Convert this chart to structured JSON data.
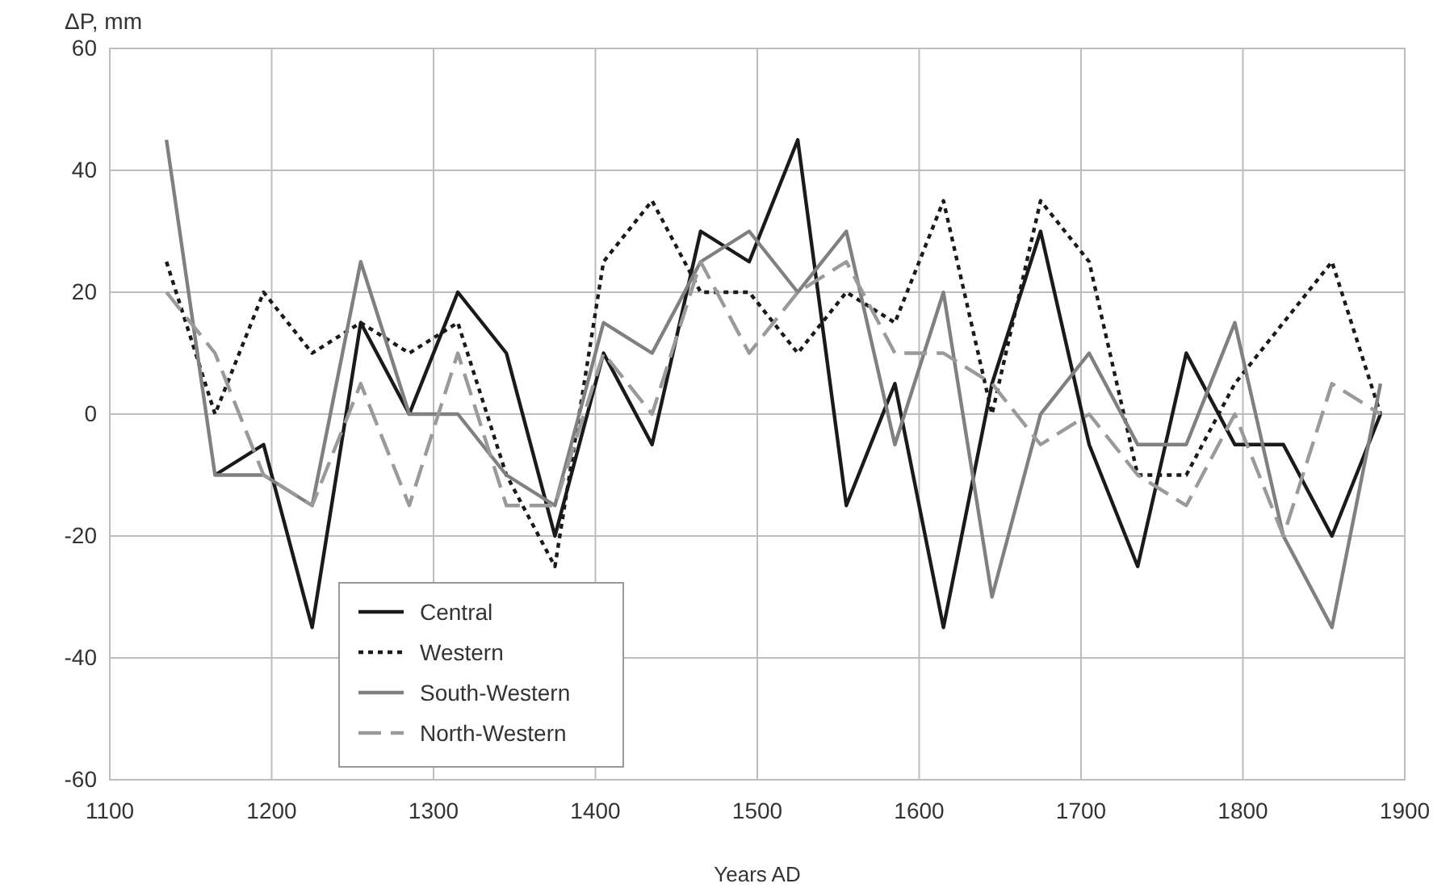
{
  "chart_data": {
    "type": "line",
    "ylabel": "ΔP, mm",
    "xlabel": "Years AD",
    "x": [
      1135,
      1165,
      1195,
      1225,
      1255,
      1285,
      1315,
      1345,
      1375,
      1405,
      1435,
      1465,
      1495,
      1525,
      1555,
      1585,
      1615,
      1645,
      1675,
      1705,
      1735,
      1765,
      1795,
      1825,
      1855,
      1885
    ],
    "xlim": [
      1100,
      1900
    ],
    "xticks": [
      1100,
      1200,
      1300,
      1400,
      1500,
      1600,
      1700,
      1800,
      1900
    ],
    "ylim": [
      -60,
      60
    ],
    "yticks": [
      -60,
      -40,
      -20,
      0,
      20,
      40,
      60
    ],
    "grid": true,
    "legend": "bottom left",
    "series": [
      {
        "name": "Central",
        "color": "#1a1a1a",
        "line_style": "solid",
        "values": [
          null,
          -10,
          -5,
          -35,
          15,
          0,
          20,
          10,
          -20,
          10,
          -5,
          30,
          25,
          45,
          -15,
          5,
          -35,
          5,
          30,
          -5,
          -25,
          10,
          -5,
          -5,
          -20,
          0
        ]
      },
      {
        "name": "Western",
        "color": "#1a1a1a",
        "line_style": "dotted",
        "values": [
          25,
          0,
          20,
          10,
          15,
          10,
          15,
          -10,
          -25,
          25,
          35,
          20,
          20,
          10,
          20,
          15,
          35,
          0,
          35,
          25,
          -10,
          -10,
          5,
          15,
          25,
          0
        ]
      },
      {
        "name": "South-Western",
        "color": "#808080",
        "line_style": "solid",
        "values": [
          45,
          -10,
          -10,
          -15,
          25,
          0,
          0,
          -10,
          -15,
          15,
          10,
          25,
          30,
          20,
          30,
          -5,
          20,
          -30,
          0,
          10,
          -5,
          -5,
          15,
          -20,
          -35,
          5
        ]
      },
      {
        "name": "North-Western",
        "color": "#9a9a9a",
        "line_style": "dashed",
        "values": [
          20,
          10,
          -10,
          -15,
          5,
          -15,
          10,
          -15,
          -15,
          10,
          0,
          25,
          10,
          20,
          25,
          10,
          10,
          5,
          -5,
          0,
          -10,
          -15,
          0,
          -20,
          5,
          0
        ]
      }
    ]
  }
}
